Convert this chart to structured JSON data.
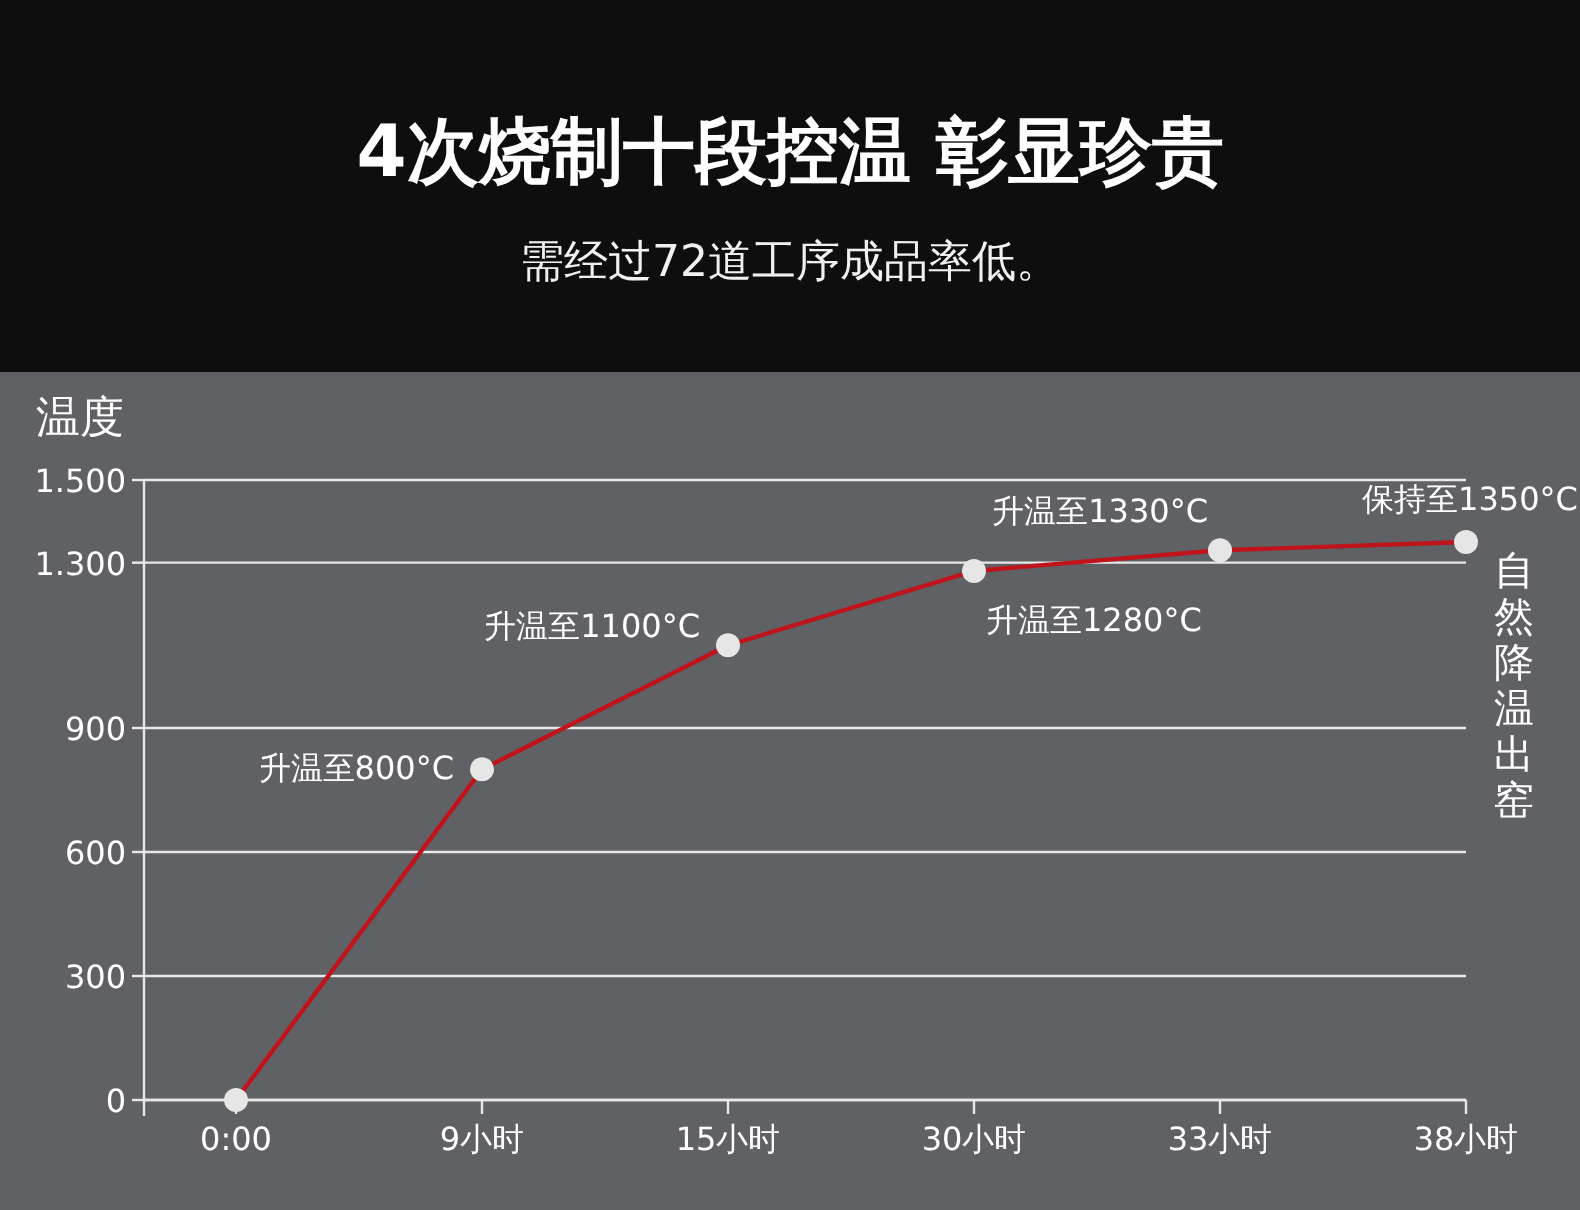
{
  "chart_data": {
    "type": "line",
    "title": "4次烧制十段控温 彰显珍贵",
    "subtitle": "需经过72道工序成品率低。",
    "ylabel": "温度",
    "categories": [
      "0:00",
      "9小时",
      "15小时",
      "30小时",
      "33小时",
      "38小时"
    ],
    "series": [
      {
        "color": "#c0141c",
        "values": [
          0,
          800,
          1100,
          1280,
          1330,
          1350
        ]
      }
    ],
    "ylim": [
      0,
      1500
    ],
    "yticks": [
      0,
      300,
      600,
      900,
      {
        "value": 1300,
        "label": "1.300"
      },
      {
        "value": 1500,
        "label": "1.500"
      }
    ],
    "grid": "y",
    "marker": "circle",
    "annotations": [
      {
        "text": "升温至800°C",
        "x": "9小时",
        "y": 800
      },
      {
        "text": "升温至1100°C",
        "x": "15小时",
        "y": 1100
      },
      {
        "text": "升温至1280°C",
        "x": "30小时",
        "y": 1280
      },
      {
        "text": "升温至1330°C",
        "x": "33小时",
        "y": 1330
      },
      {
        "text": "保持至1350°C",
        "x": "38小时",
        "y": 1350
      },
      "自然降温出窑"
    ]
  }
}
